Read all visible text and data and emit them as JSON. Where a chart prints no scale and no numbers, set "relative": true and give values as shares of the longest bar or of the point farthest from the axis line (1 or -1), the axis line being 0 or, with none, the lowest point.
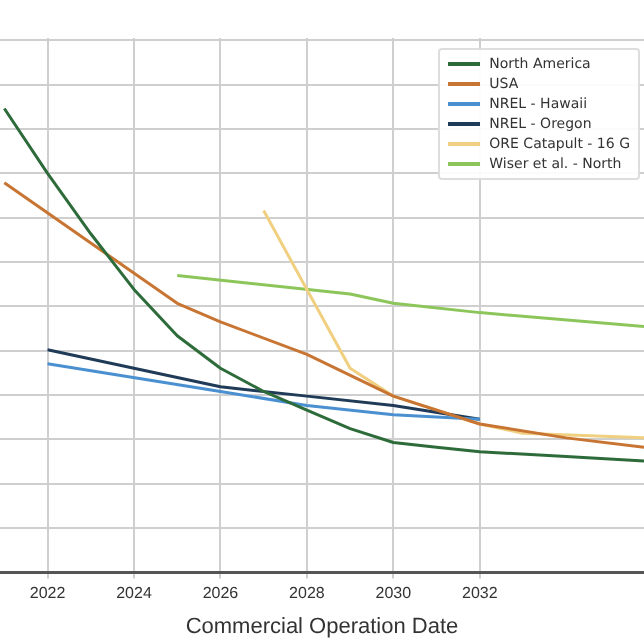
{
  "chart_data": {
    "type": "line",
    "xlabel": "Commercial Operation Date",
    "relative": true,
    "xlim": [
      2020.9,
      2035.8
    ],
    "xticks": [
      2022,
      2024,
      2026,
      2028,
      2030,
      2032
    ],
    "grid": true,
    "legend": "top right",
    "marker": "none",
    "line_style": "solid",
    "series": [
      {
        "name": "North America",
        "color": "#2e6b3a",
        "x": [
          2021,
          2022,
          2023,
          2024,
          2025,
          2026,
          2027,
          2028,
          2029,
          2030,
          2031,
          2032,
          2034,
          2035.8
        ],
        "values": [
          1,
          0.86,
          0.73,
          0.61,
          0.51,
          0.44,
          0.39,
          0.35,
          0.31,
          0.28,
          0.27,
          0.26,
          0.25,
          0.24
        ]
      },
      {
        "name": "USA",
        "color": "#c87533",
        "x": [
          2021,
          2023,
          2025,
          2026,
          2028,
          2030,
          2032,
          2034,
          2035.8
        ],
        "values": [
          0.84,
          0.71,
          0.58,
          0.54,
          0.47,
          0.38,
          0.32,
          0.29,
          0.27
        ]
      },
      {
        "name": "NREL - Hawaii",
        "color": "#4a90d0",
        "x": [
          2022,
          2026,
          2028,
          2030,
          2032
        ],
        "values": [
          0.45,
          0.39,
          0.36,
          0.34,
          0.33
        ]
      },
      {
        "name": "NREL - Oregon",
        "color": "#1f3b57",
        "x": [
          2022,
          2024,
          2026,
          2028,
          2030,
          2032
        ],
        "values": [
          0.48,
          0.44,
          0.4,
          0.38,
          0.36,
          0.33
        ]
      },
      {
        "name": "ORE Catapult - 16 G",
        "color": "#f0d080",
        "x": [
          2027,
          2028,
          2029,
          2030,
          2032,
          2033,
          2035.8
        ],
        "values": [
          0.78,
          0.61,
          0.44,
          0.38,
          0.32,
          0.3,
          0.29
        ]
      },
      {
        "name": "Wiser et al. - North",
        "color": "#8cc65a",
        "x": [
          2025,
          2029,
          2030,
          2032,
          2035.8
        ],
        "values": [
          0.64,
          0.6,
          0.58,
          0.56,
          0.53
        ]
      }
    ]
  }
}
